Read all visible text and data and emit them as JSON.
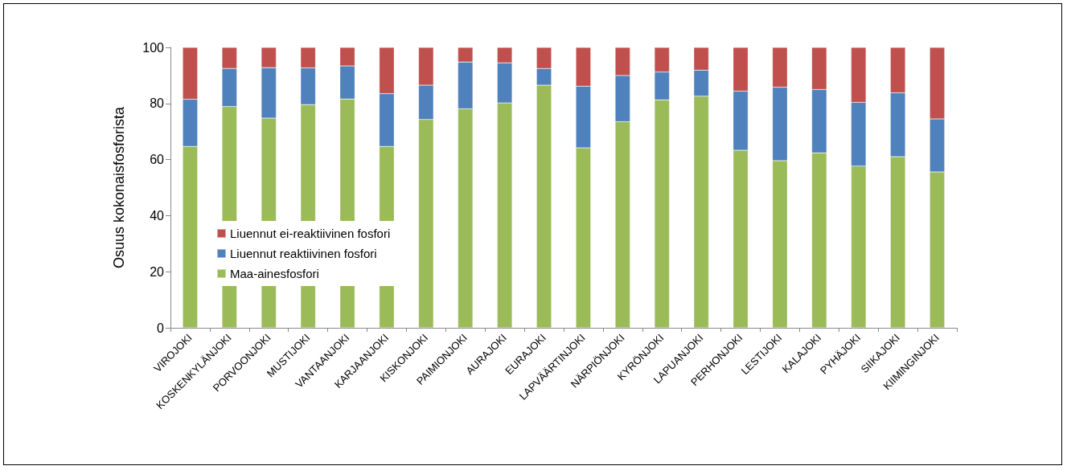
{
  "chart_data": {
    "type": "bar",
    "stacked": true,
    "ylabel": "Osuus kokonaisfosforista",
    "categories": [
      "VIROJOKI",
      "KOSKENKYLÄNJOKI",
      "PORVOONJOKI",
      "MUSTIJOKI",
      "VANTAANJOKI",
      "KARJAANJOKI",
      "KISKONJOKI",
      "PAIMIONJOKI",
      "AURAJOKI",
      "EURAJOKI",
      "LAPVÄÄRTINJOKI",
      "NÄRPIÖNJOKI",
      "KYRÖNJOKI",
      "LAPUANJOKI",
      "PERHONJOKI",
      "LESTIJOKI",
      "KALAJOKI",
      "PYHÄJOKI",
      "SIIKAJOKI",
      "KIIMINGINJOKI"
    ],
    "series": [
      {
        "name": "Maa-ainesfosfori",
        "color": "#9bbb59",
        "values": [
          64.7,
          78.9,
          74.8,
          79.6,
          81.6,
          64.7,
          74.3,
          78.1,
          80.2,
          86.5,
          64.2,
          73.5,
          81.3,
          82.6,
          63.3,
          59.6,
          62.4,
          57.7,
          61.0,
          55.6
        ]
      },
      {
        "name": "Liuennut reaktiivinen fosfori",
        "color": "#4f81bd",
        "values": [
          16.8,
          13.6,
          18.0,
          13.1,
          11.8,
          18.8,
          12.2,
          16.7,
          14.3,
          6.0,
          22.0,
          16.5,
          9.9,
          9.3,
          21.1,
          26.2,
          22.6,
          22.7,
          22.8,
          18.9
        ]
      },
      {
        "name": "Liuennut ei-reaktiivinen fosfori",
        "color": "#c0504d",
        "values": [
          18.5,
          7.5,
          7.2,
          7.3,
          6.6,
          16.5,
          13.5,
          5.2,
          5.5,
          7.5,
          13.8,
          10.0,
          8.8,
          8.1,
          15.6,
          14.2,
          15.0,
          19.6,
          16.2,
          25.5
        ]
      }
    ],
    "ylim": [
      0,
      100
    ],
    "yticks": [
      0,
      20,
      40,
      60,
      80,
      100
    ],
    "grid": false,
    "legend": "left"
  }
}
